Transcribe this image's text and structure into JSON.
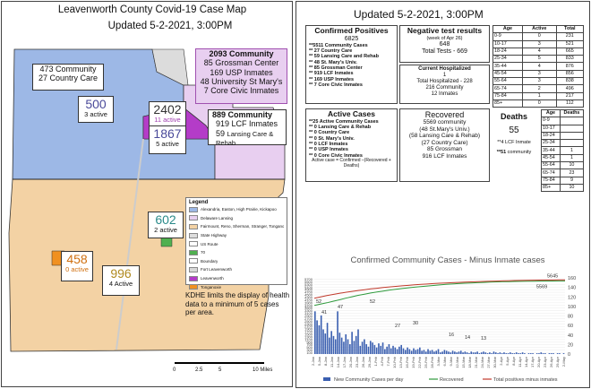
{
  "map": {
    "title": "Leavenworth County Covid-19 Case Map",
    "updated": "Updated 5-2-2021, 3:00PM",
    "nw_box": {
      "line1": "473 Community",
      "line2": "27 Country Care"
    },
    "nw_count": {
      "value": "500",
      "sub": "3 active"
    },
    "ne_box": {
      "line1": "2093 Community",
      "line2": "85 Grossman Center",
      "line3": "169 USP Inmates",
      "line4": "48 University St Mary's",
      "line5": "7 Core Civic Inmates"
    },
    "ne_count": {
      "value": "2402",
      "sub": "11 active"
    },
    "e_box": {
      "line1": "889 Community",
      "line2": "919 LCF Inmates",
      "line3": "59",
      "line4": "Lansing Care & Rehab"
    },
    "e_count": {
      "value": "1867",
      "sub": "5 active"
    },
    "sw_count": {
      "value": "458",
      "sub": "0 active"
    },
    "s_count": {
      "value": "996",
      "sub": "4 Active"
    },
    "se_count": {
      "value": "602",
      "sub": "2 active"
    },
    "note": "KDHE limits the display of health data to a minimum of 5 cases per area.",
    "scale": {
      "t0": "0",
      "t1": "2.5",
      "t2": "5",
      "t3": "10 Miles"
    },
    "legend": {
      "title": "Legend",
      "items": [
        {
          "label": "Alexandria, Easton, High Prairie, Kickapoo",
          "color": "#9db8e6"
        },
        {
          "label": "Delaware Lansing",
          "color": "#e8cff0"
        },
        {
          "label": "Fairmount, Reno, Sherman, Stranger, Tonganoxie",
          "color": "#f3d2a4"
        },
        {
          "label": "State Highway",
          "color": "#dddddd"
        },
        {
          "label": "US Route",
          "color": "#ffffff"
        },
        {
          "label": "70",
          "color": "#50b050"
        },
        {
          "label": "Boundary",
          "color": "#ffffff"
        },
        {
          "label": "Fort Leavenworth",
          "color": "#d8d8d8"
        },
        {
          "label": "Leavenworth",
          "color": "#b43cc8"
        },
        {
          "label": "Tonganoxie",
          "color": "#f09020"
        }
      ]
    }
  },
  "dashboard": {
    "updated": "Updated 5-2-2021, 3:00PM",
    "confirmed": {
      "title": "Confirmed Positives",
      "total": "6825",
      "lines": [
        "**5511 Community Cases",
        "**   27 Country Care",
        "**   59 Lansing Care and Rehab",
        "**   48 St. Mary's Univ.",
        "**   85 Grossman Center",
        "** 919 LCF Inmates",
        "** 169 USP Inmates",
        "**    7 Core Civic Inmates"
      ]
    },
    "negative": {
      "title": "Negative test results",
      "week": "(week of Apr 26)",
      "week_value": "648",
      "total": "Total Tests - 669"
    },
    "hospitalized": {
      "title": "Current Hospitalized",
      "value": "1",
      "total": "Total Hospitalized - 228",
      "community": "216  Community",
      "inmates": "12 Inmates"
    },
    "age_table": {
      "headers": [
        "Age",
        "Active",
        "Total"
      ],
      "rows": [
        [
          "0-9",
          "0",
          "231"
        ],
        [
          "10-17",
          "3",
          "521"
        ],
        [
          "18-24",
          "4",
          "665"
        ],
        [
          "25-34",
          "5",
          "833"
        ],
        [
          "35-44",
          "4",
          "876"
        ],
        [
          "45-54",
          "3",
          "856"
        ],
        [
          "55-64",
          "3",
          "838"
        ],
        [
          "65-74",
          "2",
          "496"
        ],
        [
          "75-84",
          "1",
          "217"
        ],
        [
          "85+",
          "0",
          "112"
        ]
      ]
    },
    "active": {
      "title": "Active Cases",
      "lines": [
        "**25 Active Community Cases",
        "**   0  Lansing Care & Rehab",
        "**   0  Country Care",
        "**   0  St. Mary's Univ.",
        "**   0 LCF Inmates",
        "**   0 USP Inmates",
        "**   0 Core Civic Inmates"
      ],
      "formula": "Active case = Confirmed –(Recovered + Deaths)"
    },
    "recovered": {
      "title": "Recovered",
      "lines": [
        "5569 community",
        "(48 St.Mary's Univ.)",
        "(58 Lansing Care & Rehab)",
        "(27 Country Care)",
        "85  Grossman",
        "916  LCF Inmates"
      ]
    },
    "deaths": {
      "title": "Deaths",
      "value": "55",
      "lcf": "**4 LCF Inmate",
      "community_count": "**51",
      "community_label": "community"
    },
    "death_table": {
      "headers": [
        "Age",
        "Deaths"
      ],
      "rows": [
        [
          "0-9",
          ""
        ],
        [
          "10-17",
          ""
        ],
        [
          "18-24",
          ""
        ],
        [
          "25-34",
          ""
        ],
        [
          "35-44",
          "1"
        ],
        [
          "45-54",
          "1"
        ],
        [
          "55-64",
          "10"
        ],
        [
          "65-74",
          "23"
        ],
        [
          "75-84",
          "9"
        ],
        [
          "85+",
          "10"
        ]
      ]
    }
  },
  "chart_data": {
    "type": "line",
    "title": "Confirmed Community Cases - Minus Inmate cases",
    "ylim_left": [
      0,
      5800
    ],
    "ylim_right": [
      0,
      160
    ],
    "yticks_left": [
      "100",
      "300",
      "500",
      "700",
      "900",
      "1100",
      "1300",
      "1500",
      "1700",
      "1900",
      "2100",
      "2300",
      "2500",
      "2700",
      "2900",
      "3100",
      "3300",
      "3500",
      "3700",
      "3900",
      "4100",
      "4300",
      "4500",
      "4700",
      "4900",
      "5100",
      "5300",
      "5500",
      "5700"
    ],
    "yticks_right": [
      "0",
      "20",
      "40",
      "60",
      "80",
      "100",
      "120",
      "140",
      "160"
    ],
    "x_labels": [
      "2-Jan",
      "5-Jan",
      "8-Jan",
      "11-Jan",
      "14-Jan",
      "17-Jan",
      "20-Jan",
      "23-Jan",
      "26-Jan",
      "29-Jan",
      "1-Feb",
      "4-Feb",
      "7-Feb",
      "10-Feb",
      "13-Feb",
      "16-Feb",
      "19-Feb",
      "22-Feb",
      "25-Feb",
      "28-Feb",
      "3-Mar",
      "6-Mar",
      "9-Mar",
      "12-Mar",
      "15-Mar",
      "18-Mar",
      "21-Mar",
      "24-Mar",
      "27-Mar",
      "30-Mar",
      "2-Apr",
      "5-Apr",
      "8-Apr",
      "11-Apr",
      "14-Apr",
      "17-Apr",
      "20-Apr",
      "23-Apr",
      "26-Apr",
      "29-Apr",
      "2-May"
    ],
    "annotations": [
      "52",
      "41",
      "47",
      "52",
      "27",
      "30",
      "16",
      "14",
      "13",
      "5645",
      "5569"
    ],
    "series": [
      {
        "name": "New Community Cases per day",
        "color": "#3a5fb0",
        "values": [
          52,
          41,
          35,
          47,
          30,
          25,
          38,
          20,
          28,
          22,
          18,
          52,
          26,
          20,
          15,
          24,
          18,
          12,
          27,
          16,
          22,
          30,
          10,
          15,
          18,
          12,
          9,
          16,
          14,
          11,
          8,
          13,
          10,
          14,
          6,
          9,
          12,
          7,
          10,
          8,
          6,
          9,
          11,
          7,
          5,
          8,
          6,
          4,
          7,
          5,
          6,
          8,
          4,
          5,
          3,
          6,
          4,
          5,
          3,
          4,
          6,
          2,
          3,
          5,
          4,
          3,
          2,
          4,
          3,
          2,
          3,
          4,
          2,
          3,
          2,
          1,
          3,
          2,
          2,
          3,
          1,
          2,
          3,
          2,
          1,
          2,
          1,
          3,
          2,
          1,
          2,
          1,
          2,
          1,
          1,
          2,
          1,
          1,
          2,
          1,
          1,
          2,
          1,
          0,
          1,
          1,
          1,
          0,
          1,
          1,
          2,
          1,
          1,
          0,
          1,
          1,
          1,
          0,
          1,
          1,
          0,
          1
        ]
      },
      {
        "name": "Recovered",
        "color": "#2e9a3c",
        "values": [
          3700,
          3800,
          3900,
          4020,
          4130,
          4250,
          4360,
          4470,
          4560,
          4650,
          4730,
          4800,
          4870,
          4930,
          4990,
          5040,
          5090,
          5140,
          5180,
          5220,
          5260,
          5300,
          5330,
          5360,
          5390,
          5410,
          5430,
          5450,
          5470,
          5490,
          5505,
          5515,
          5525,
          5535,
          5545,
          5550,
          5555,
          5560,
          5563,
          5566,
          5569
        ]
      },
      {
        "name": "Total positives minus inmates",
        "color": "#c0392b",
        "values": [
          4250,
          4350,
          4450,
          4540,
          4620,
          4700,
          4770,
          4840,
          4900,
          4960,
          5010,
          5060,
          5110,
          5150,
          5190,
          5230,
          5270,
          5300,
          5330,
          5360,
          5390,
          5410,
          5430,
          5450,
          5470,
          5490,
          5510,
          5525,
          5540,
          5555,
          5570,
          5585,
          5595,
          5605,
          5615,
          5622,
          5628,
          5634,
          5638,
          5642,
          5645
        ]
      }
    ]
  }
}
